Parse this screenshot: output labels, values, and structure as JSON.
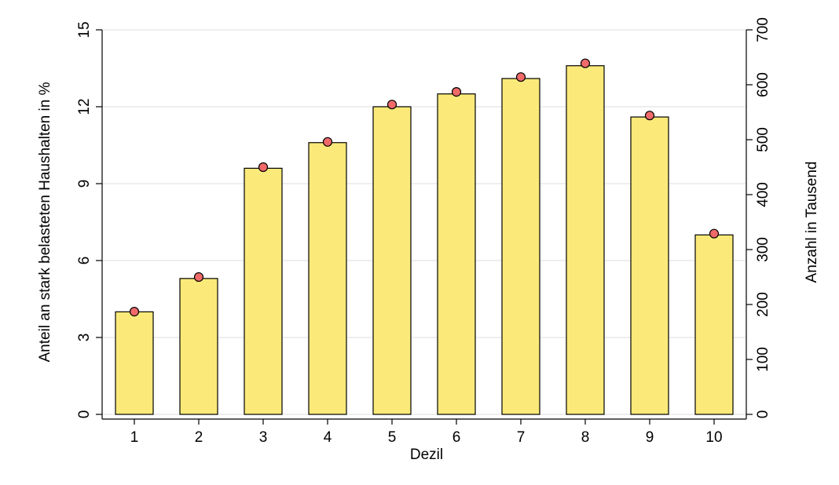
{
  "chart_data": {
    "type": "bar",
    "xlabel": "Dezil",
    "ylabel": "Anteil an stark belasteten Haushalten in %",
    "y2label": "Anzahl in Tausend",
    "categories": [
      "1",
      "2",
      "3",
      "4",
      "5",
      "6",
      "7",
      "8",
      "9",
      "10"
    ],
    "series": [
      {
        "type": "bar",
        "color": "#fbea7a",
        "values": [
          4.0,
          5.3,
          9.6,
          10.6,
          12.0,
          12.5,
          13.1,
          13.6,
          11.6,
          7.0
        ]
      },
      {
        "type": "scatter",
        "color": "#f06a6a",
        "axis": "y2",
        "values": [
          187,
          250,
          450,
          496,
          564,
          587,
          614,
          639,
          544,
          329
        ]
      }
    ],
    "ylim": [
      0,
      15
    ],
    "yticks": [
      0,
      3,
      6,
      9,
      12,
      15
    ],
    "y2lim": [
      0,
      700
    ],
    "y2ticks": [
      0,
      100,
      200,
      300,
      400,
      500,
      600,
      700
    ],
    "grid": true
  }
}
